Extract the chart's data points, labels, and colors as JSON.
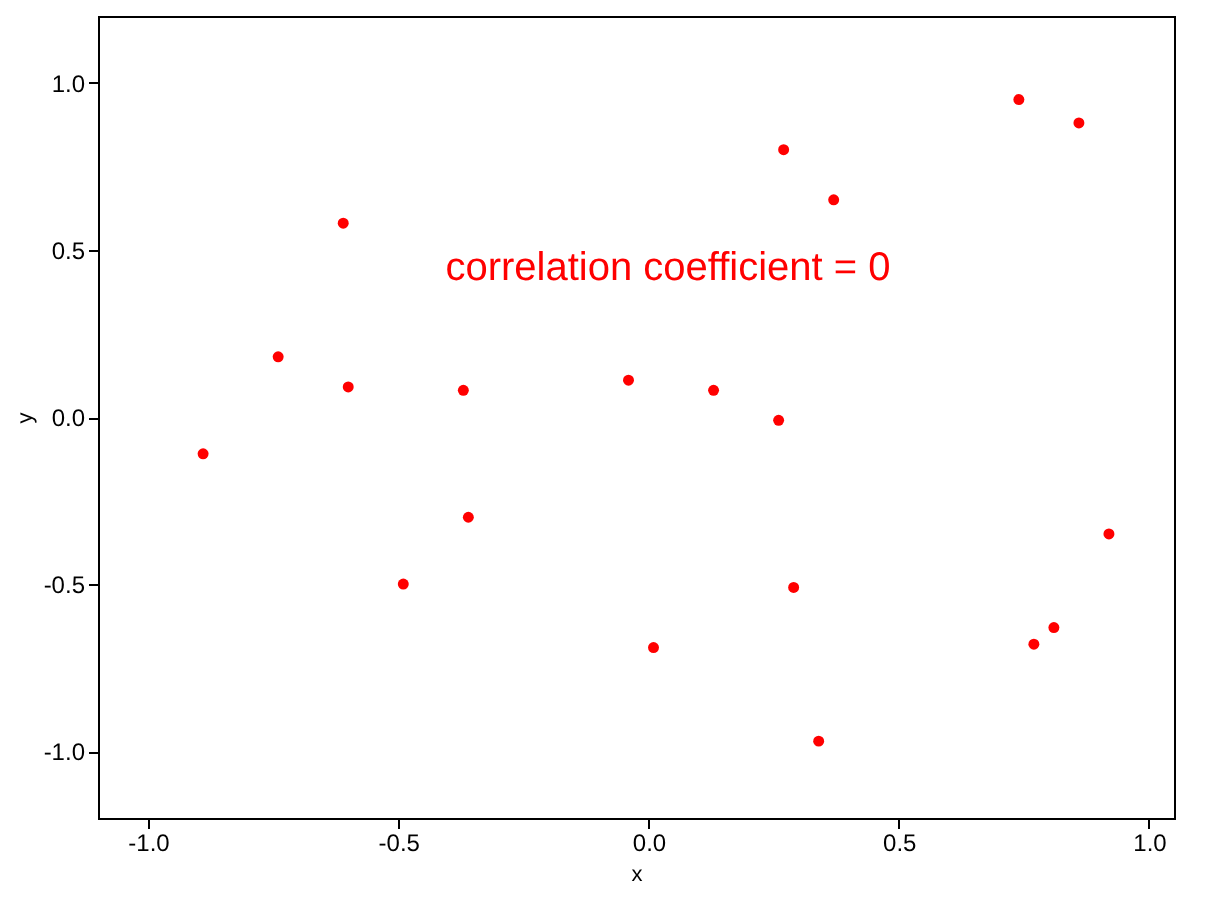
{
  "chart_data": {
    "type": "scatter",
    "xlabel": "x",
    "ylabel": "y",
    "x": [
      -0.89,
      -0.74,
      -0.61,
      -0.6,
      -0.49,
      -0.37,
      -0.36,
      -0.04,
      0.01,
      0.13,
      0.26,
      0.27,
      0.29,
      0.34,
      0.37,
      0.74,
      0.77,
      0.81,
      0.86,
      0.92
    ],
    "series": [
      {
        "color": "#ff0000",
        "values": [
          -0.11,
          0.18,
          0.58,
          0.09,
          -0.5,
          0.08,
          -0.3,
          0.11,
          -0.69,
          0.08,
          -0.01,
          0.8,
          -0.51,
          -0.97,
          0.65,
          0.95,
          -0.68,
          -0.63,
          0.88,
          -0.35
        ]
      }
    ],
    "xlim": [
      -1.1,
      1.05
    ],
    "ylim": [
      -1.2,
      1.2
    ],
    "xticks": [
      {
        "value": -1,
        "label": "-1.0"
      },
      {
        "value": -0.5,
        "label": "-0.5"
      },
      {
        "value": 0,
        "label": "0.0"
      },
      {
        "value": 0.5,
        "label": "0.5"
      },
      {
        "value": 1,
        "label": "1.0"
      }
    ],
    "yticks": [
      {
        "value": -1,
        "label": "-1.0"
      },
      {
        "value": -0.5,
        "label": "-0.5"
      },
      {
        "value": 0,
        "label": "0.0"
      },
      {
        "value": 0.5,
        "label": "0.5"
      },
      {
        "value": 1,
        "label": "1.0"
      }
    ],
    "annotations": [
      "correlation coefficient = 0"
    ],
    "grid": false,
    "marker": "circle"
  }
}
